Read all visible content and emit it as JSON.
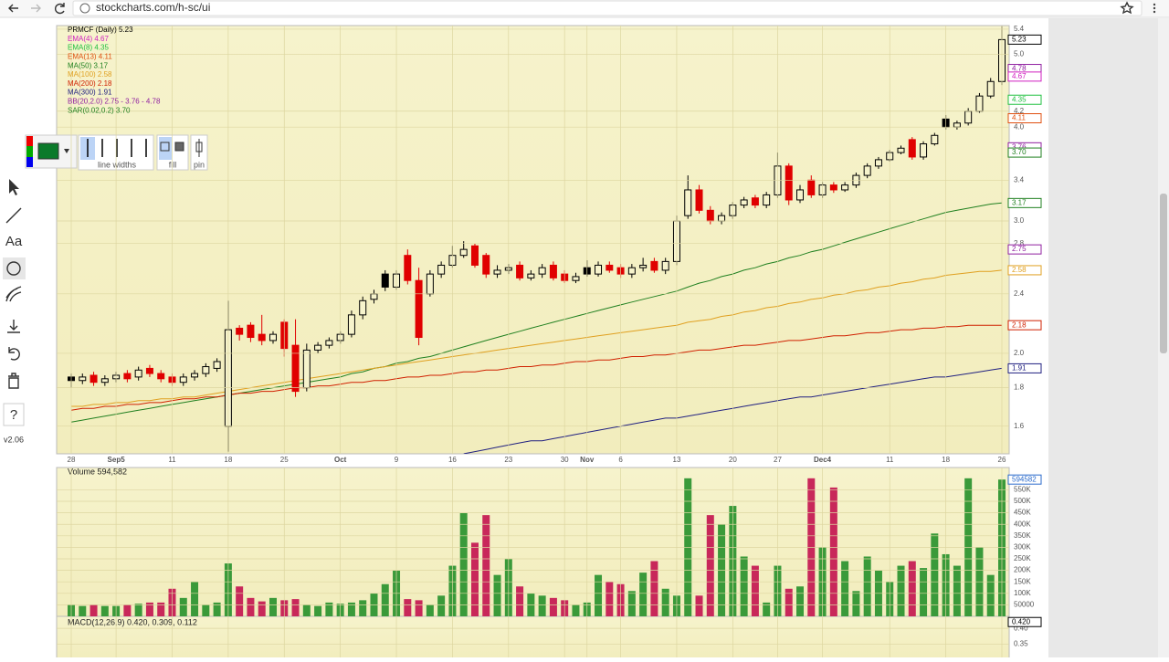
{
  "browser": {
    "url": "stockcharts.com/h-sc/ui"
  },
  "toolbar": {
    "text_tool": "Aa",
    "line_widths": "line widths",
    "fill": "fill",
    "pin": "pin",
    "help": "?",
    "version": "v2.06"
  },
  "price_chart": {
    "type": "candlestick",
    "legend": [
      {
        "text": "PRMCF (Daily) 5.23",
        "color": "#000000"
      },
      {
        "text": "EMA(4) 4.67",
        "color": "#d020c0"
      },
      {
        "text": "EMA(8) 4.35",
        "color": "#20c040"
      },
      {
        "text": "EMA(13) 4.11",
        "color": "#e05010"
      },
      {
        "text": "MA(50) 3.17",
        "color": "#208020"
      },
      {
        "text": "MA(100) 2.58",
        "color": "#e0a020"
      },
      {
        "text": "MA(200) 2.18",
        "color": "#d02000"
      },
      {
        "text": "MA(300) 1.91",
        "color": "#202080"
      },
      {
        "text": "BB(20,2.0) 2.75 - 3.76 - 4.78",
        "color": "#9020a0"
      },
      {
        "text": "SAR(0.02,0.2) 3.70",
        "color": "#208020"
      }
    ],
    "categories": [
      "28",
      null,
      null,
      null,
      "Sep5",
      null,
      null,
      null,
      null,
      "11",
      null,
      null,
      null,
      null,
      "18",
      null,
      null,
      null,
      null,
      "25",
      null,
      null,
      null,
      null,
      "Oct",
      null,
      null,
      null,
      null,
      "9",
      null,
      null,
      null,
      null,
      "16",
      null,
      null,
      null,
      null,
      "23",
      null,
      null,
      null,
      null,
      "30",
      null,
      "Nov",
      null,
      null,
      "6",
      null,
      null,
      null,
      null,
      "13",
      null,
      null,
      null,
      null,
      "20",
      null,
      null,
      null,
      "27",
      null,
      null,
      null,
      "Dec4",
      null,
      null,
      null,
      null,
      null,
      "11",
      null,
      null,
      null,
      null,
      "18",
      null,
      null,
      null,
      null,
      "26"
    ],
    "open": [
      1.86,
      1.84,
      1.87,
      1.83,
      1.85,
      1.88,
      1.86,
      1.91,
      1.88,
      1.86,
      1.83,
      1.86,
      1.88,
      1.91,
      1.6,
      2.16,
      2.18,
      2.12,
      2.08,
      2.2,
      2.05,
      1.8,
      2.02,
      2.05,
      2.08,
      2.12,
      2.25,
      2.36,
      2.55,
      2.45,
      2.7,
      2.5,
      2.4,
      2.55,
      2.62,
      2.7,
      2.78,
      2.7,
      2.55,
      2.58,
      2.62,
      2.52,
      2.55,
      2.62,
      2.55,
      2.5,
      2.6,
      2.55,
      2.62,
      2.6,
      2.55,
      2.6,
      2.65,
      2.58,
      2.65,
      3.05,
      3.3,
      3.1,
      3.0,
      3.05,
      3.15,
      3.22,
      3.15,
      3.25,
      3.55,
      3.2,
      3.4,
      3.25,
      3.35,
      3.3,
      3.35,
      3.45,
      3.55,
      3.62,
      3.7,
      3.85,
      3.65,
      3.8,
      4.1,
      4.0,
      4.05,
      4.2,
      4.4,
      4.6
    ],
    "high": [
      1.88,
      1.88,
      1.89,
      1.87,
      1.89,
      1.9,
      1.92,
      1.93,
      1.9,
      1.88,
      1.88,
      1.9,
      1.94,
      1.97,
      2.35,
      2.18,
      2.2,
      2.25,
      2.14,
      2.22,
      2.22,
      2.06,
      2.07,
      2.1,
      2.14,
      2.28,
      2.38,
      2.43,
      2.58,
      2.58,
      2.75,
      2.6,
      2.58,
      2.65,
      2.78,
      2.82,
      2.8,
      2.72,
      2.62,
      2.63,
      2.65,
      2.58,
      2.63,
      2.65,
      2.58,
      2.56,
      2.66,
      2.65,
      2.65,
      2.63,
      2.63,
      2.68,
      2.68,
      2.68,
      3.05,
      3.45,
      3.35,
      3.14,
      3.08,
      3.18,
      3.23,
      3.25,
      3.28,
      3.7,
      3.58,
      3.35,
      3.45,
      3.38,
      3.38,
      3.38,
      3.48,
      3.58,
      3.65,
      3.73,
      3.78,
      3.88,
      3.83,
      3.93,
      4.15,
      4.08,
      4.24,
      4.44,
      4.65,
      5.45
    ],
    "low": [
      1.8,
      1.82,
      1.81,
      1.81,
      1.83,
      1.83,
      1.84,
      1.86,
      1.83,
      1.81,
      1.81,
      1.84,
      1.86,
      1.89,
      1.48,
      2.08,
      2.07,
      2.05,
      2.06,
      1.98,
      1.75,
      1.78,
      2.0,
      2.03,
      2.06,
      2.1,
      2.22,
      2.33,
      2.42,
      2.43,
      2.47,
      2.05,
      2.38,
      2.52,
      2.6,
      2.68,
      2.6,
      2.52,
      2.52,
      2.55,
      2.5,
      2.5,
      2.52,
      2.5,
      2.48,
      2.48,
      2.53,
      2.53,
      2.56,
      2.52,
      2.52,
      2.57,
      2.56,
      2.55,
      2.62,
      3.02,
      3.07,
      2.97,
      2.97,
      3.02,
      3.12,
      3.12,
      3.12,
      3.22,
      3.15,
      3.17,
      3.22,
      3.22,
      3.27,
      3.28,
      3.32,
      3.42,
      3.52,
      3.6,
      3.68,
      3.62,
      3.62,
      3.78,
      3.97,
      3.97,
      4.02,
      4.18,
      4.37,
      4.55
    ],
    "close": [
      1.84,
      1.86,
      1.83,
      1.85,
      1.87,
      1.85,
      1.9,
      1.88,
      1.85,
      1.83,
      1.86,
      1.88,
      1.92,
      1.95,
      2.15,
      2.12,
      2.1,
      2.08,
      2.12,
      2.03,
      1.78,
      2.02,
      2.05,
      2.08,
      2.12,
      2.25,
      2.35,
      2.4,
      2.45,
      2.55,
      2.5,
      2.1,
      2.55,
      2.62,
      2.7,
      2.75,
      2.62,
      2.55,
      2.58,
      2.6,
      2.52,
      2.55,
      2.6,
      2.52,
      2.5,
      2.53,
      2.55,
      2.62,
      2.58,
      2.55,
      2.6,
      2.62,
      2.58,
      2.65,
      3.0,
      3.3,
      3.1,
      3.0,
      3.05,
      3.15,
      3.2,
      3.15,
      3.25,
      3.55,
      3.2,
      3.3,
      3.25,
      3.35,
      3.3,
      3.35,
      3.45,
      3.55,
      3.62,
      3.7,
      3.75,
      3.65,
      3.8,
      3.9,
      4.0,
      4.05,
      4.2,
      4.4,
      4.6,
      5.23
    ],
    "up_color": "#000000",
    "down_color": "#e00000",
    "ylim": [
      1.47,
      5.46
    ],
    "log_scale": true,
    "grid": true,
    "yticks": [
      1.6,
      1.8,
      {
        "value": 2,
        "label": "2.0"
      },
      2.4,
      2.8,
      {
        "value": 3,
        "label": "3.0"
      },
      3.4,
      {
        "value": 4,
        "label": "4.0"
      },
      4.2,
      {
        "value": 5,
        "label": "5.0"
      },
      5.4
    ],
    "overlays": [
      {
        "color": "#208020",
        "values": [
          1.62,
          1.63,
          1.64,
          1.65,
          1.66,
          1.67,
          1.68,
          1.69,
          1.7,
          1.71,
          1.72,
          1.73,
          1.74,
          1.75,
          1.76,
          1.77,
          1.78,
          1.79,
          1.8,
          1.81,
          1.82,
          1.83,
          1.84,
          1.85,
          1.86,
          1.88,
          1.89,
          1.91,
          1.92,
          1.94,
          1.95,
          1.97,
          1.98,
          2.0,
          2.02,
          2.04,
          2.06,
          2.08,
          2.1,
          2.12,
          2.14,
          2.16,
          2.18,
          2.2,
          2.22,
          2.24,
          2.26,
          2.28,
          2.3,
          2.32,
          2.34,
          2.36,
          2.38,
          2.4,
          2.42,
          2.45,
          2.48,
          2.5,
          2.53,
          2.55,
          2.58,
          2.6,
          2.63,
          2.65,
          2.68,
          2.7,
          2.73,
          2.75,
          2.78,
          2.81,
          2.84,
          2.87,
          2.9,
          2.93,
          2.96,
          2.99,
          3.02,
          3.05,
          3.08,
          3.1,
          3.12,
          3.14,
          3.16,
          3.17
        ]
      },
      {
        "color": "#e0a020",
        "values": [
          1.7,
          1.7,
          1.71,
          1.71,
          1.72,
          1.72,
          1.73,
          1.73,
          1.74,
          1.74,
          1.75,
          1.75,
          1.76,
          1.77,
          1.78,
          1.79,
          1.8,
          1.81,
          1.82,
          1.83,
          1.84,
          1.85,
          1.86,
          1.87,
          1.88,
          1.89,
          1.9,
          1.91,
          1.92,
          1.93,
          1.94,
          1.95,
          1.96,
          1.97,
          1.98,
          1.99,
          2.0,
          2.01,
          2.02,
          2.03,
          2.04,
          2.05,
          2.06,
          2.07,
          2.08,
          2.09,
          2.1,
          2.11,
          2.12,
          2.13,
          2.14,
          2.15,
          2.16,
          2.17,
          2.18,
          2.2,
          2.21,
          2.22,
          2.24,
          2.25,
          2.27,
          2.28,
          2.3,
          2.31,
          2.33,
          2.34,
          2.36,
          2.37,
          2.39,
          2.4,
          2.42,
          2.43,
          2.45,
          2.46,
          2.48,
          2.49,
          2.51,
          2.52,
          2.54,
          2.55,
          2.56,
          2.57,
          2.57,
          2.58
        ]
      },
      {
        "color": "#d02000",
        "values": [
          1.68,
          1.69,
          1.69,
          1.7,
          1.7,
          1.71,
          1.71,
          1.72,
          1.72,
          1.73,
          1.74,
          1.74,
          1.75,
          1.75,
          1.76,
          1.77,
          1.77,
          1.78,
          1.78,
          1.79,
          1.8,
          1.8,
          1.81,
          1.81,
          1.82,
          1.83,
          1.83,
          1.84,
          1.84,
          1.85,
          1.86,
          1.86,
          1.87,
          1.87,
          1.88,
          1.89,
          1.89,
          1.9,
          1.9,
          1.91,
          1.92,
          1.92,
          1.93,
          1.93,
          1.94,
          1.95,
          1.95,
          1.96,
          1.96,
          1.97,
          1.98,
          1.98,
          1.99,
          1.99,
          2.0,
          2.01,
          2.02,
          2.02,
          2.03,
          2.04,
          2.05,
          2.05,
          2.06,
          2.07,
          2.08,
          2.08,
          2.09,
          2.1,
          2.11,
          2.11,
          2.12,
          2.13,
          2.13,
          2.14,
          2.15,
          2.15,
          2.16,
          2.16,
          2.17,
          2.17,
          2.18,
          2.18,
          2.18,
          2.18
        ]
      },
      {
        "color": "#202080",
        "values": [
          null,
          null,
          null,
          null,
          null,
          null,
          null,
          null,
          null,
          null,
          null,
          null,
          null,
          null,
          null,
          null,
          null,
          null,
          null,
          null,
          null,
          null,
          null,
          null,
          null,
          null,
          null,
          null,
          null,
          null,
          null,
          null,
          null,
          null,
          null,
          1.47,
          1.48,
          1.49,
          1.5,
          1.51,
          1.52,
          1.53,
          1.53,
          1.54,
          1.55,
          1.56,
          1.57,
          1.58,
          1.59,
          1.6,
          1.61,
          1.62,
          1.63,
          1.64,
          1.64,
          1.65,
          1.66,
          1.67,
          1.68,
          1.69,
          1.7,
          1.71,
          1.72,
          1.73,
          1.74,
          1.75,
          1.75,
          1.76,
          1.77,
          1.78,
          1.79,
          1.8,
          1.81,
          1.82,
          1.83,
          1.84,
          1.85,
          1.86,
          1.86,
          1.87,
          1.88,
          1.89,
          1.9,
          1.91
        ]
      }
    ],
    "tags": [
      {
        "value": 5.23,
        "color": "#000000"
      },
      {
        "value": 4.78,
        "color": "#9020a0"
      },
      {
        "value": 4.67,
        "color": "#d020c0"
      },
      {
        "value": 4.35,
        "color": "#20c040"
      },
      {
        "value": 4.11,
        "color": "#e05010"
      },
      {
        "value": 3.76,
        "color": "#9020a0"
      },
      {
        "value": 3.7,
        "label": "3.70",
        "color": "#208020"
      },
      {
        "value": 3.17,
        "color": "#208020"
      },
      {
        "value": 2.75,
        "color": "#9020a0"
      },
      {
        "value": 2.58,
        "color": "#e0a020"
      },
      {
        "value": 2.18,
        "color": "#d02000"
      },
      {
        "value": 1.91,
        "color": "#202080"
      }
    ]
  },
  "volume_chart": {
    "type": "bar",
    "title": "Volume 594,582",
    "values": [
      50000,
      45000,
      50000,
      45000,
      45000,
      50000,
      55000,
      60000,
      60000,
      120000,
      80000,
      150000,
      50000,
      60000,
      230000,
      130000,
      80000,
      65000,
      80000,
      70000,
      75000,
      50000,
      45000,
      60000,
      55000,
      60000,
      70000,
      100000,
      140000,
      200000,
      75000,
      70000,
      50000,
      90000,
      220000,
      450000,
      320000,
      440000,
      180000,
      250000,
      130000,
      100000,
      90000,
      80000,
      70000,
      50000,
      60000,
      180000,
      150000,
      140000,
      110000,
      190000,
      240000,
      120000,
      90000,
      600000,
      90000,
      440000,
      400000,
      480000,
      260000,
      220000,
      60000,
      220000,
      120000,
      130000,
      600000,
      300000,
      560000,
      240000,
      110000,
      260000,
      200000,
      150000,
      220000,
      240000,
      210000,
      360000,
      270000,
      220000,
      600000,
      300000,
      180000,
      594582
    ],
    "up_color": "#3a9a3a",
    "down_color": "#c8285a",
    "ylim": [
      0,
      635000
    ],
    "yticks": [
      50000,
      {
        "value": 100000,
        "label": "100K"
      },
      {
        "value": 150000,
        "label": "150K"
      },
      {
        "value": 200000,
        "label": "200K"
      },
      {
        "value": 250000,
        "label": "250K"
      },
      {
        "value": 300000,
        "label": "300K"
      },
      {
        "value": 350000,
        "label": "350K"
      },
      {
        "value": 400000,
        "label": "400K"
      },
      {
        "value": 450000,
        "label": "450K"
      },
      {
        "value": 500000,
        "label": "500K"
      },
      {
        "value": 550000,
        "label": "550K"
      }
    ],
    "tags": [
      {
        "value": 594582,
        "color": "#2a6acb"
      }
    ]
  },
  "macd_chart": {
    "type": "line",
    "title": "MACD(12,26,9) 0.420, 0.309, 0.112",
    "ylim": [
      0.308,
      0.438
    ],
    "yticks": [
      {
        "value": 0.4,
        "label": "0.40"
      },
      0.35
    ],
    "tags": [
      {
        "value": 0.42,
        "label": "0.420",
        "color": "#000000"
      }
    ]
  }
}
